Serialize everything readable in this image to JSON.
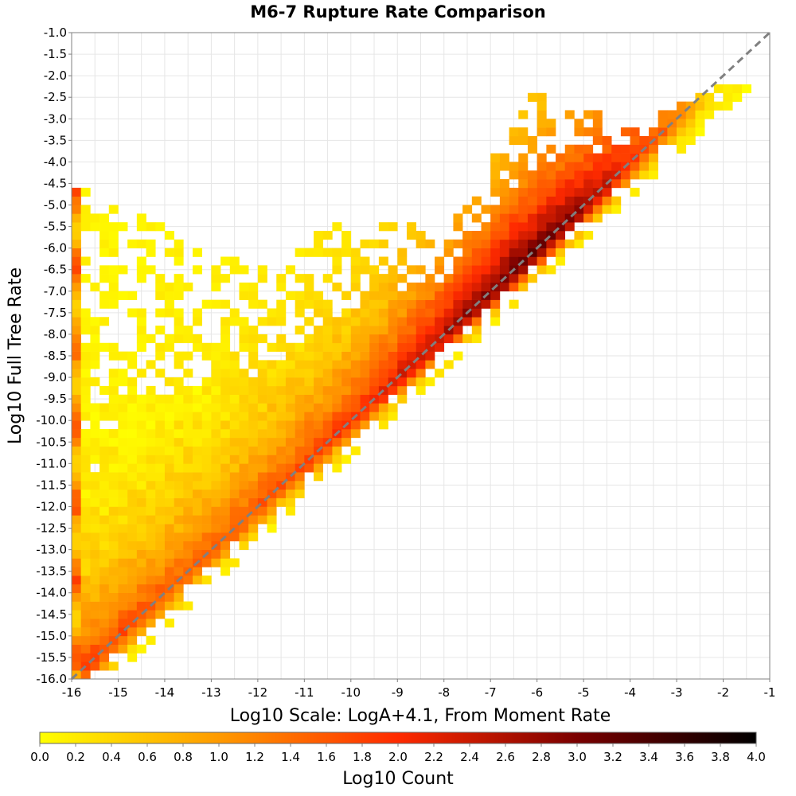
{
  "chart_data": {
    "type": "heatmap",
    "title": "M6-7 Rupture Rate Comparison",
    "xlabel": "Log10 Scale: LogA+4.1, From Moment Rate",
    "ylabel": "Log10 Full Tree Rate",
    "xlim": [
      -16,
      -1
    ],
    "ylim": [
      -16,
      -1
    ],
    "x_ticks": [
      "-16",
      "-15",
      "-14",
      "-13",
      "-12",
      "-11",
      "-10",
      "-9",
      "-8",
      "-7",
      "-6",
      "-5",
      "-4",
      "-3",
      "-2",
      "-1"
    ],
    "y_ticks": [
      "-1.0",
      "-1.5",
      "-2.0",
      "-2.5",
      "-3.0",
      "-3.5",
      "-4.0",
      "-4.5",
      "-5.0",
      "-5.5",
      "-6.0",
      "-6.5",
      "-7.0",
      "-7.5",
      "-8.0",
      "-8.5",
      "-9.0",
      "-9.5",
      "-10.0",
      "-10.5",
      "-11.0",
      "-11.5",
      "-12.0",
      "-12.5",
      "-13.0",
      "-13.5",
      "-14.0",
      "-14.5",
      "-15.0",
      "-15.5",
      "-16.0"
    ],
    "bin_width": 0.2,
    "reference_line": {
      "from": [
        -16,
        -16
      ],
      "to": [
        -1,
        -1
      ],
      "style": "dashed",
      "color": "#808080"
    },
    "colorbar": {
      "label": "Log10 Count",
      "range": [
        0.0,
        4.0
      ],
      "ticks": [
        "0.0",
        "0.2",
        "0.4",
        "0.6",
        "0.8",
        "1.0",
        "1.2",
        "1.4",
        "1.6",
        "1.8",
        "2.0",
        "2.2",
        "2.4",
        "2.6",
        "2.8",
        "3.0",
        "3.2",
        "3.4",
        "3.6",
        "3.8",
        "4.0"
      ],
      "colors": [
        "#ffff00",
        "#ff9a00",
        "#ff2a00",
        "#7a0000",
        "#000000"
      ]
    },
    "density_model": {
      "description": "Approximate Log10 Count per 0.2x0.2 bin, estimated from the figure",
      "diagonal_ridge": [
        {
          "x": -16,
          "log10_count": 1.8
        },
        {
          "x": -13,
          "log10_count": 1.5
        },
        {
          "x": -10,
          "log10_count": 1.9
        },
        {
          "x": -8,
          "log10_count": 2.6
        },
        {
          "x": -6.5,
          "log10_count": 3.2
        },
        {
          "x": -5.5,
          "log10_count": 3.1
        },
        {
          "x": -4.5,
          "log10_count": 2.5
        },
        {
          "x": -3,
          "log10_count": 1.2
        },
        {
          "x": -2,
          "log10_count": 0.2
        }
      ],
      "left_edge_column": {
        "x": -16,
        "log10_count_range": [
          0.3,
          1.9
        ]
      },
      "upper_extent_y": [
        {
          "x": -16,
          "y": -4.5
        },
        {
          "x": -14,
          "y": -5.5
        },
        {
          "x": -12,
          "y": -6.5
        },
        {
          "x": -10,
          "y": -5.2
        },
        {
          "x": -8,
          "y": -5.6
        },
        {
          "x": -6,
          "y": -2.3
        },
        {
          "x": -4,
          "y": -3.2
        },
        {
          "x": -2,
          "y": -2.2
        }
      ],
      "lower_extent_offset": 0.9
    }
  }
}
